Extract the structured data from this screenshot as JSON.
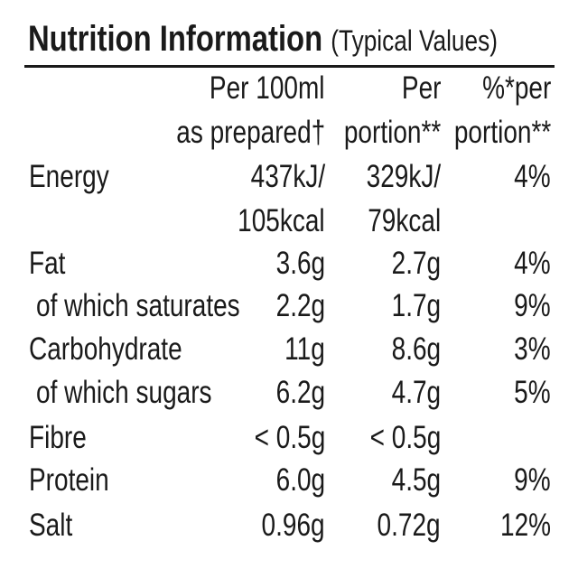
{
  "title": "Nutrition Information",
  "subtitle": "(Typical Values)",
  "headers": [
    [
      "Per 100ml",
      "as prepared†"
    ],
    [
      "Per",
      "portion**"
    ],
    [
      "%*per",
      "portion**"
    ]
  ],
  "rows": [
    {
      "label": "Energy",
      "c1": "437kJ/",
      "c2": "329kJ/",
      "c3": "4%",
      "c1b": "105kcal",
      "c2b": "79kcal"
    },
    {
      "label": "Fat",
      "c1": "3.6g",
      "c2": "2.7g",
      "c3": "4%"
    },
    {
      "label": "of which saturates",
      "c1": "2.2g",
      "c2": "1.7g",
      "c3": "9%"
    },
    {
      "label": "Carbohydrate",
      "c1": "11g",
      "c2": "8.6g",
      "c3": "3%"
    },
    {
      "label": "of which sugars",
      "c1": "6.2g",
      "c2": "4.7g",
      "c3": "5%"
    },
    {
      "label": "Fibre",
      "c1": "< 0.5g",
      "c2": "< 0.5g",
      "c3": ""
    },
    {
      "label": "Protein",
      "c1": "6.0g",
      "c2": "4.5g",
      "c3": "9%"
    },
    {
      "label": "Salt",
      "c1": "0.96g",
      "c2": "0.72g",
      "c3": "12%"
    }
  ]
}
